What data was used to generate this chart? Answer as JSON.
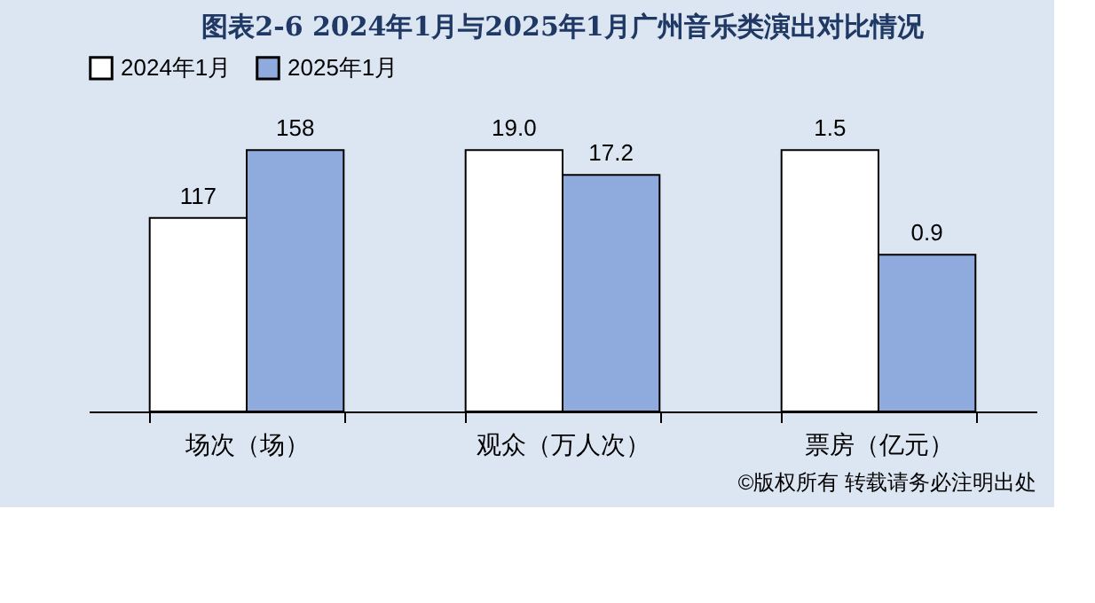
{
  "chart_data": [
    {
      "type": "bar",
      "title": "图表2-6  2024年1月与2025年1月广州音乐类演出对比情况",
      "legend": "top",
      "categories": [
        "场次（场）"
      ],
      "series": [
        {
          "name": "2024年1月",
          "color": "#ffffff",
          "values": [
            117
          ],
          "value_labels": [
            "117"
          ]
        },
        {
          "name": "2025年1月",
          "color": "#8faadc",
          "values": [
            158
          ],
          "value_labels": [
            "158"
          ]
        }
      ]
    },
    {
      "type": "bar",
      "categories": [
        "观众（万人次）"
      ],
      "series": [
        {
          "name": "2024年1月",
          "color": "#ffffff",
          "values": [
            19.0
          ],
          "value_labels": [
            "19.0"
          ]
        },
        {
          "name": "2025年1月",
          "color": "#8faadc",
          "values": [
            17.2
          ],
          "value_labels": [
            "17.2"
          ]
        }
      ]
    },
    {
      "type": "bar",
      "categories": [
        "票房（亿元）"
      ],
      "annotations": [
        "©版权所有  转载请务必注明出处"
      ],
      "series": [
        {
          "name": "2024年1月",
          "color": "#ffffff",
          "values": [
            1.5
          ],
          "value_labels": [
            "1.5"
          ]
        },
        {
          "name": "2025年1月",
          "color": "#8faadc",
          "values": [
            0.9
          ],
          "value_labels": [
            "0.9"
          ]
        }
      ]
    }
  ]
}
